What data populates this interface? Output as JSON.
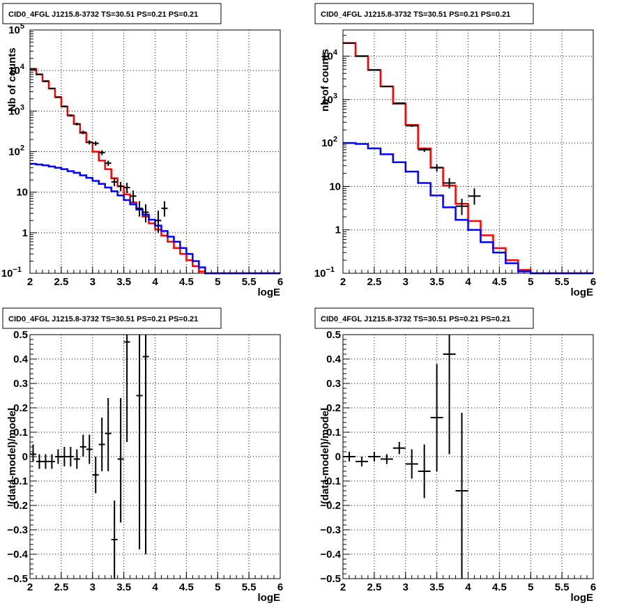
{
  "colors": {
    "data": "#000000",
    "model": "#ff0000",
    "background": "#0000ff",
    "grid": "#000000"
  },
  "chart_data": [
    {
      "id": "p1",
      "type": "line",
      "title": "CID0_4FGL J1215.8-3732 TS=30.51 PS=0.21 PS=0.21",
      "xlabel": "logE",
      "ylabel": "Nb of counts",
      "xlim": [
        2,
        6
      ],
      "ylim": [
        0.1,
        100000
      ],
      "yscale": "log",
      "grid": true,
      "xticks": [
        "2",
        "2.5",
        "3",
        "3.5",
        "4",
        "4.5",
        "5",
        "5.5",
        "6"
      ],
      "yticks": [
        {
          "v": 0.1,
          "b": "10",
          "e": "−1"
        },
        {
          "v": 1,
          "b": "1",
          "e": ""
        },
        {
          "v": 10,
          "b": "10",
          "e": ""
        },
        {
          "v": 100,
          "b": "10",
          "e": "2"
        },
        {
          "v": 1000,
          "b": "10",
          "e": "3"
        },
        {
          "v": 10000,
          "b": "10",
          "e": "4"
        },
        {
          "v": 100000,
          "b": "10",
          "e": "5"
        }
      ],
      "bin_edges": [
        2.0,
        2.1,
        2.2,
        2.3,
        2.4,
        2.5,
        2.6,
        2.7,
        2.8,
        2.9,
        3.0,
        3.1,
        3.2,
        3.3,
        3.4,
        3.5,
        3.6,
        3.7,
        3.8,
        3.9,
        4.0,
        4.1,
        4.2,
        4.3,
        4.4,
        4.5,
        4.6,
        4.7,
        4.8,
        4.9,
        5.0,
        5.1,
        5.2,
        5.3,
        5.4,
        5.5,
        5.6,
        5.7,
        5.8,
        5.9,
        6.0
      ],
      "series": [
        {
          "role": "model",
          "color": "#ff0000",
          "values": [
            11000,
            8000,
            5500,
            3600,
            2200,
            1300,
            780,
            480,
            290,
            170,
            100,
            60,
            37,
            22,
            14,
            8.8,
            5.6,
            3.7,
            2.5,
            1.7,
            1.2,
            0.85,
            0.6,
            0.42,
            0.3,
            0.21,
            0.15,
            0.11,
            0.1,
            0.1,
            0.1,
            0.1,
            0.1,
            0.1,
            0.1,
            0.1,
            0.1,
            0.1,
            0.1,
            0.1
          ]
        },
        {
          "role": "background",
          "color": "#0000ff",
          "values": [
            50,
            48,
            46,
            43,
            40,
            37,
            33,
            30,
            26,
            22.5,
            19,
            16,
            13,
            10.5,
            8.3,
            6.4,
            5,
            3.8,
            2.8,
            2.1,
            1.5,
            1.1,
            0.8,
            0.6,
            0.42,
            0.3,
            0.2,
            0.14,
            0.1,
            0.1,
            0.1,
            0.1,
            0.1,
            0.1,
            0.1,
            0.1,
            0.1,
            0.1,
            0.1,
            0.1
          ]
        }
      ],
      "points": [
        {
          "x": 2.05,
          "y": 10800,
          "ylo": 10600,
          "yhi": 11000
        },
        {
          "x": 2.15,
          "y": 8100,
          "ylo": 7900,
          "yhi": 8300
        },
        {
          "x": 2.25,
          "y": 5400,
          "ylo": 5250,
          "yhi": 5550
        },
        {
          "x": 2.35,
          "y": 3600,
          "ylo": 3480,
          "yhi": 3720
        },
        {
          "x": 2.45,
          "y": 2200,
          "ylo": 2110,
          "yhi": 2290
        },
        {
          "x": 2.55,
          "y": 1300,
          "ylo": 1230,
          "yhi": 1370
        },
        {
          "x": 2.65,
          "y": 780,
          "ylo": 730,
          "yhi": 830
        },
        {
          "x": 2.75,
          "y": 480,
          "ylo": 440,
          "yhi": 520
        },
        {
          "x": 2.85,
          "y": 300,
          "ylo": 270,
          "yhi": 330
        },
        {
          "x": 2.95,
          "y": 170,
          "ylo": 150,
          "yhi": 190
        },
        {
          "x": 3.05,
          "y": 160,
          "ylo": 140,
          "yhi": 180
        },
        {
          "x": 3.15,
          "y": 95,
          "ylo": 82,
          "yhi": 108
        },
        {
          "x": 3.25,
          "y": 52,
          "ylo": 44,
          "yhi": 60
        },
        {
          "x": 3.35,
          "y": 18,
          "ylo": 14,
          "yhi": 23
        },
        {
          "x": 3.45,
          "y": 14,
          "ylo": 10.5,
          "yhi": 18
        },
        {
          "x": 3.55,
          "y": 13,
          "ylo": 9.5,
          "yhi": 17
        },
        {
          "x": 3.65,
          "y": 8,
          "ylo": 5.5,
          "yhi": 11
        },
        {
          "x": 3.75,
          "y": 4,
          "ylo": 2.5,
          "yhi": 6
        },
        {
          "x": 3.85,
          "y": 3.2,
          "ylo": 1.8,
          "yhi": 5
        },
        {
          "x": 4.05,
          "y": 2,
          "ylo": 1,
          "yhi": 3.5
        },
        {
          "x": 4.15,
          "y": 4,
          "ylo": 2.5,
          "yhi": 6
        }
      ]
    },
    {
      "id": "p2",
      "type": "line",
      "title": "CID0_4FGL J1215.8-3732 TS=30.51 PS=0.21 PS=0.21",
      "xlabel": "logE",
      "ylabel": "nb of counts",
      "xlim": [
        2,
        6
      ],
      "ylim": [
        0.1,
        40000
      ],
      "yscale": "log",
      "grid": true,
      "xticks": [
        "2",
        "2.5",
        "3",
        "3.5",
        "4",
        "4.5",
        "5",
        "5.5",
        "6"
      ],
      "yticks": [
        {
          "v": 0.1,
          "b": "10",
          "e": "−1"
        },
        {
          "v": 1,
          "b": "1",
          "e": ""
        },
        {
          "v": 10,
          "b": "10",
          "e": ""
        },
        {
          "v": 100,
          "b": "10",
          "e": "2"
        },
        {
          "v": 1000,
          "b": "10",
          "e": "3"
        },
        {
          "v": 10000,
          "b": "10",
          "e": "4"
        }
      ],
      "bin_edges": [
        2.0,
        2.2,
        2.4,
        2.6,
        2.8,
        3.0,
        3.2,
        3.4,
        3.6,
        3.8,
        4.0,
        4.2,
        4.4,
        4.6,
        4.8,
        5.0,
        5.2,
        5.4,
        5.6,
        5.8,
        6.0
      ],
      "series": [
        {
          "role": "model",
          "color": "#ff0000",
          "values": [
            20000,
            10000,
            4800,
            2000,
            800,
            260,
            75,
            27,
            10.5,
            4,
            1.6,
            0.75,
            0.38,
            0.2,
            0.12,
            0.1,
            0.1,
            0.1,
            0.1,
            0.1
          ]
        },
        {
          "role": "background",
          "color": "#0000ff",
          "values": [
            100,
            95,
            75,
            55,
            36,
            22,
            12,
            6.2,
            3.3,
            1.7,
            1.0,
            0.52,
            0.3,
            0.17,
            0.11,
            0.1,
            0.1,
            0.1,
            0.1,
            0.1
          ]
        }
      ],
      "points": [
        {
          "x": 2.1,
          "y": 20000,
          "ylo": 19700,
          "yhi": 20300
        },
        {
          "x": 2.3,
          "y": 10000,
          "ylo": 9800,
          "yhi": 10200
        },
        {
          "x": 2.5,
          "y": 4800,
          "ylo": 4700,
          "yhi": 4900
        },
        {
          "x": 2.7,
          "y": 2000,
          "ylo": 1950,
          "yhi": 2050
        },
        {
          "x": 2.9,
          "y": 830,
          "ylo": 800,
          "yhi": 860
        },
        {
          "x": 3.1,
          "y": 250,
          "ylo": 234,
          "yhi": 266
        },
        {
          "x": 3.3,
          "y": 70,
          "ylo": 62,
          "yhi": 78
        },
        {
          "x": 3.5,
          "y": 27,
          "ylo": 22,
          "yhi": 32
        },
        {
          "x": 3.7,
          "y": 12,
          "ylo": 9,
          "yhi": 15.5
        },
        {
          "x": 3.9,
          "y": 3.5,
          "ylo": 2.2,
          "yhi": 5.2
        },
        {
          "x": 4.1,
          "y": 6,
          "ylo": 3.8,
          "yhi": 9
        }
      ]
    },
    {
      "id": "p3",
      "type": "scatter",
      "title": "CID0_4FGL J1215.8-3732 TS=30.51 PS=0.21 PS=0.21",
      "xlabel": "logE",
      "ylabel": "(data-model)/model",
      "xlim": [
        2,
        6
      ],
      "ylim": [
        -0.5,
        0.5
      ],
      "yscale": "linear",
      "grid": true,
      "xticks": [
        "2",
        "2.5",
        "3",
        "3.5",
        "4",
        "4.5",
        "5",
        "5.5",
        "6"
      ],
      "yticks": [
        "−0.5",
        "−0.4",
        "−0.3",
        "−0.2",
        "−0.1",
        "0",
        "0.1",
        "0.2",
        "0.3",
        "0.4",
        "0.5"
      ],
      "xerr": 0.05,
      "points": [
        {
          "x": 2.05,
          "y": 0.01,
          "ylo": -0.02,
          "yhi": 0.05
        },
        {
          "x": 2.15,
          "y": -0.02,
          "ylo": -0.05,
          "yhi": 0.01
        },
        {
          "x": 2.25,
          "y": -0.02,
          "ylo": -0.05,
          "yhi": 0.01
        },
        {
          "x": 2.35,
          "y": -0.02,
          "ylo": -0.05,
          "yhi": 0.01
        },
        {
          "x": 2.45,
          "y": 0.0,
          "ylo": -0.03,
          "yhi": 0.03
        },
        {
          "x": 2.55,
          "y": 0.0,
          "ylo": -0.04,
          "yhi": 0.04
        },
        {
          "x": 2.65,
          "y": 0.0,
          "ylo": -0.04,
          "yhi": 0.04
        },
        {
          "x": 2.75,
          "y": -0.01,
          "ylo": -0.05,
          "yhi": 0.03
        },
        {
          "x": 2.85,
          "y": 0.04,
          "ylo": 0.0,
          "yhi": 0.09
        },
        {
          "x": 2.95,
          "y": 0.03,
          "ylo": -0.03,
          "yhi": 0.09
        },
        {
          "x": 3.05,
          "y": -0.075,
          "ylo": -0.15,
          "yhi": 0.0
        },
        {
          "x": 3.15,
          "y": 0.05,
          "ylo": -0.06,
          "yhi": 0.16
        },
        {
          "x": 3.25,
          "y": 0.095,
          "ylo": -0.06,
          "yhi": 0.24
        },
        {
          "x": 3.35,
          "y": -0.34,
          "ylo": -0.5,
          "yhi": -0.18
        },
        {
          "x": 3.45,
          "y": -0.01,
          "ylo": -0.27,
          "yhi": 0.24
        },
        {
          "x": 3.55,
          "y": 0.47,
          "ylo": 0.06,
          "yhi": 0.5
        },
        {
          "x": 3.75,
          "y": 0.25,
          "ylo": -0.38,
          "yhi": 0.5
        },
        {
          "x": 3.85,
          "y": 0.41,
          "ylo": -0.4,
          "yhi": 0.5
        }
      ]
    },
    {
      "id": "p4",
      "type": "scatter",
      "title": "CID0_4FGL J1215.8-3732 TS=30.51 PS=0.21 PS=0.21",
      "xlabel": "logE",
      "ylabel": "(data-model)/model",
      "xlim": [
        2,
        6
      ],
      "ylim": [
        -0.5,
        0.5
      ],
      "yscale": "linear",
      "grid": true,
      "xticks": [
        "2",
        "2.5",
        "3",
        "3.5",
        "4",
        "4.5",
        "5",
        "5.5",
        "6"
      ],
      "yticks": [
        "−0.5",
        "−0.4",
        "−0.3",
        "−0.2",
        "−0.1",
        "0",
        "0.1",
        "0.2",
        "0.3",
        "0.4",
        "0.5"
      ],
      "xerr": 0.1,
      "points": [
        {
          "x": 2.1,
          "y": 0.0,
          "ylo": -0.02,
          "yhi": 0.02
        },
        {
          "x": 2.3,
          "y": -0.02,
          "ylo": -0.04,
          "yhi": 0.0
        },
        {
          "x": 2.5,
          "y": 0.0,
          "ylo": -0.02,
          "yhi": 0.02
        },
        {
          "x": 2.7,
          "y": -0.01,
          "ylo": -0.03,
          "yhi": 0.01
        },
        {
          "x": 2.9,
          "y": 0.035,
          "ylo": 0.01,
          "yhi": 0.06
        },
        {
          "x": 3.1,
          "y": -0.03,
          "ylo": -0.09,
          "yhi": 0.03
        },
        {
          "x": 3.3,
          "y": -0.06,
          "ylo": -0.17,
          "yhi": 0.05
        },
        {
          "x": 3.5,
          "y": 0.16,
          "ylo": -0.06,
          "yhi": 0.38
        },
        {
          "x": 3.7,
          "y": 0.42,
          "ylo": 0.01,
          "yhi": 0.5
        },
        {
          "x": 3.9,
          "y": -0.14,
          "ylo": -0.5,
          "yhi": 0.18
        }
      ]
    }
  ]
}
